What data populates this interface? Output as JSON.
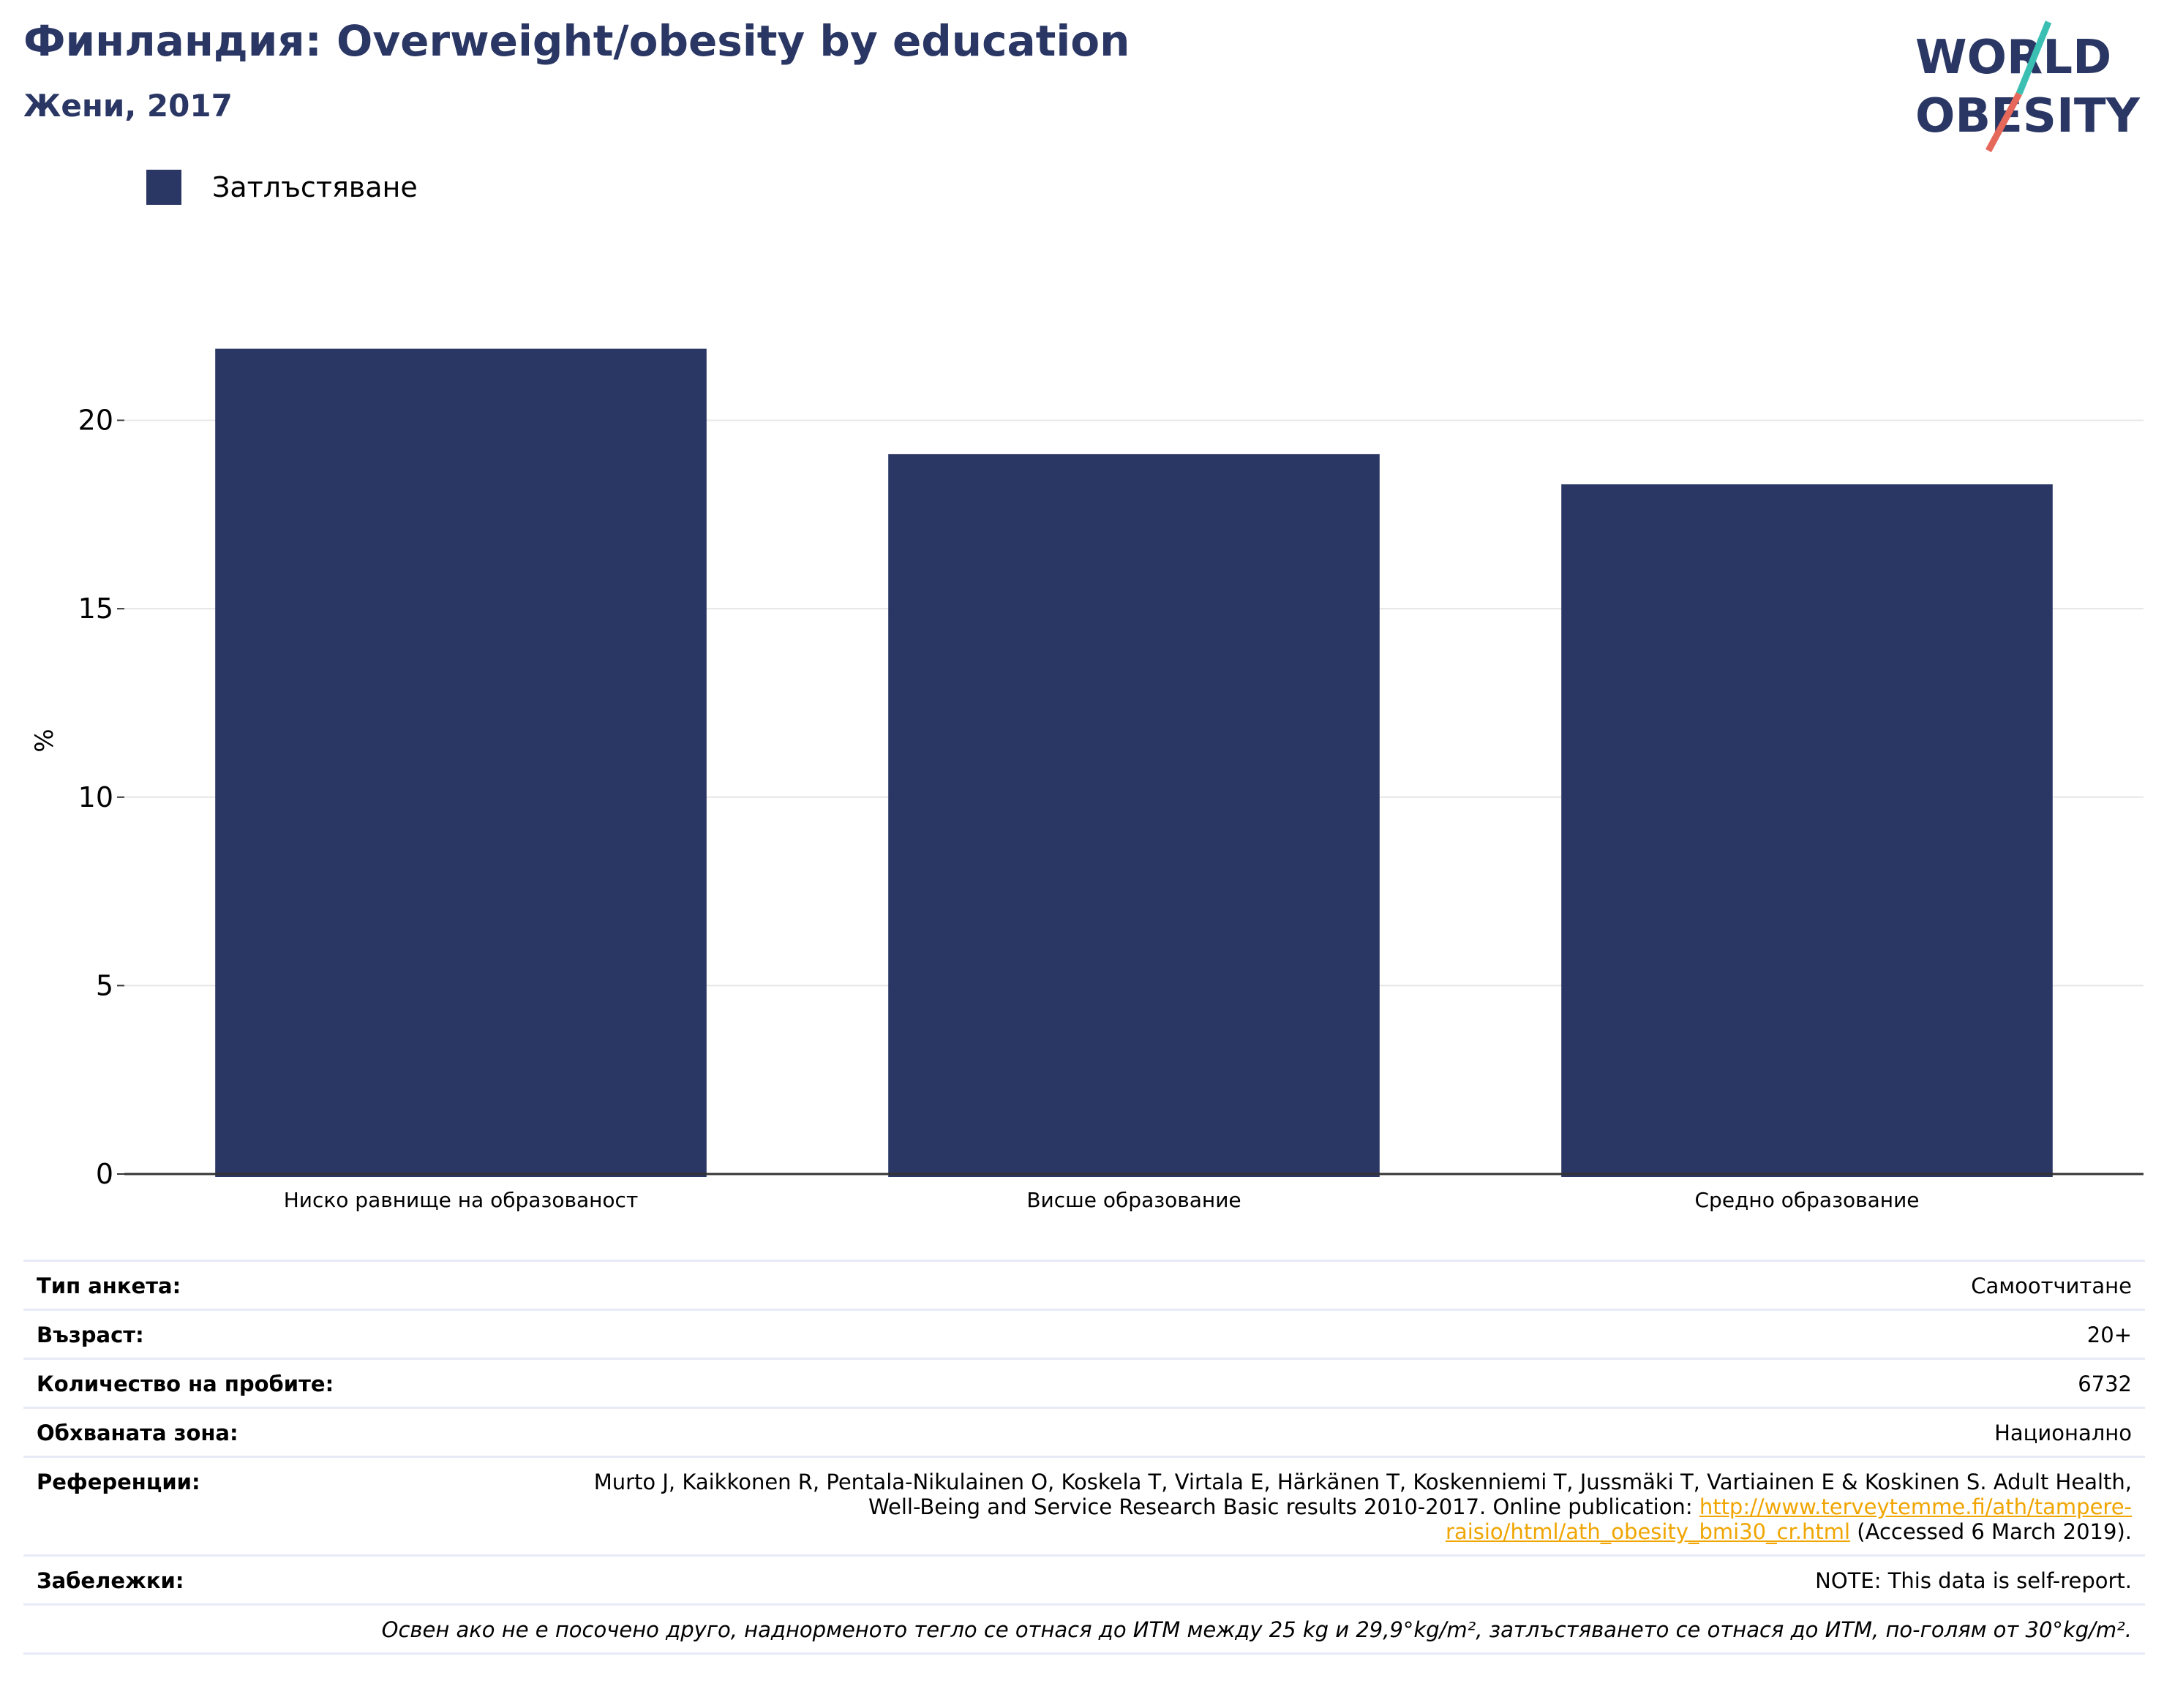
{
  "header": {
    "title": "Финландия: Overweight/obesity by education",
    "subtitle": "Жени, 2017"
  },
  "logo": {
    "line1": "WORLD",
    "line2": "OBESITY"
  },
  "colors": {
    "bar": "#2a3663",
    "accent_teal": "#3bbfb3",
    "accent_coral": "#e5685a",
    "link": "#f0a500"
  },
  "chart_data": {
    "type": "bar",
    "categories": [
      "Ниско равнище на образованост",
      "Висше образование",
      "Средно образование"
    ],
    "series": [
      {
        "name": "Затлъстяване",
        "values": [
          21.9,
          19.1,
          18.3
        ]
      }
    ],
    "ylabel": "%",
    "xlabel": "",
    "ylim": [
      0,
      23
    ],
    "yticks": [
      0,
      5,
      10,
      15,
      20
    ],
    "grid": true,
    "legend": "top-left"
  },
  "info": {
    "survey_type": {
      "label": "Тип анкета:",
      "value": "Самоотчитане"
    },
    "age": {
      "label": "Възраст:",
      "value": "20+"
    },
    "sample_size": {
      "label": "Количество на пробите:",
      "value": "6732"
    },
    "area": {
      "label": "Обхваната зона:",
      "value": "Национално"
    },
    "references": {
      "label": "Референции:",
      "text_before": "Murto J, Kaikkonen R, Pentala-Nikulainen O, Koskela T, Virtala E, Härkänen T, Koskenniemi T, Jussmäki T, Vartiainen E & Koskinen S. Adult Health, Well-Being and Service Research Basic results 2010-2017. Online publication: ",
      "link": "http://www.terveytemme.fi/ath/tampere-raisio/html/ath_obesity_bmi30_cr.html",
      "text_after": " (Accessed 6 March 2019)."
    },
    "notes": {
      "label": "Забележки:",
      "value": "NOTE: This data is self-report."
    },
    "definition": "Освен ако не е посочено друго, наднорменото тегло се отнася до ИТМ между 25 kg и 29,9°kg/m², затлъстяването се отнася до ИТМ, по-голям от 30°kg/m²."
  }
}
